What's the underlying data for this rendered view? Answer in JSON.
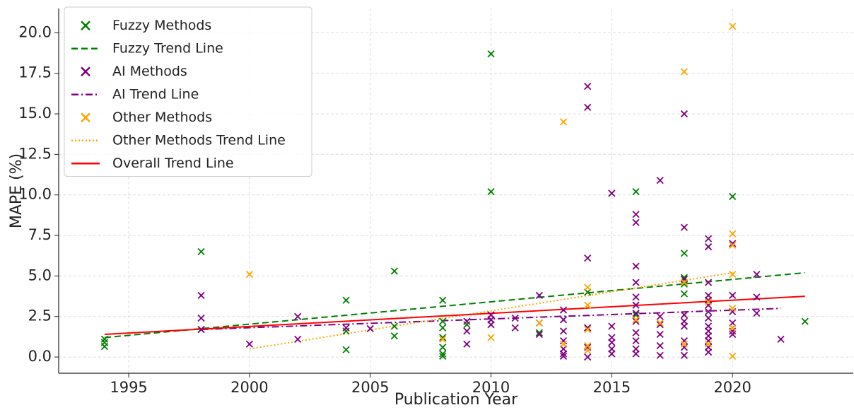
{
  "chart_data": {
    "type": "scatter",
    "xlabel": "Publication Year",
    "ylabel": "MAPE (%)",
    "xlim": [
      1992.1,
      2025
    ],
    "ylim": [
      -1.0,
      21.5
    ],
    "xticks": [
      1995,
      2000,
      2005,
      2010,
      2015,
      2020
    ],
    "yticks": [
      {
        "value": 0,
        "label": "0.0"
      },
      2.5,
      {
        "value": 5,
        "label": "5.0"
      },
      7.5,
      {
        "value": 10,
        "label": "10.0"
      },
      12.5,
      {
        "value": 15,
        "label": "15.0"
      },
      17.5,
      {
        "value": 20,
        "label": "20.0"
      }
    ],
    "grid": true,
    "legend": "upper left",
    "series": [
      {
        "name": "Fuzzy Methods",
        "color": "#008000",
        "marker": "x",
        "x": [
          1994,
          1994,
          1994,
          1998,
          1998,
          2004,
          2004,
          2004,
          2006,
          2006,
          2006,
          2008,
          2008,
          2008,
          2008,
          2008,
          2008,
          2008,
          2009,
          2010,
          2010,
          2012,
          2014,
          2014,
          2016,
          2016,
          2018,
          2018,
          2018,
          2018,
          2019,
          2020,
          2020,
          2023
        ],
        "values": [
          1.1,
          0.9,
          0.65,
          6.5,
          1.7,
          3.5,
          0.45,
          1.6,
          5.3,
          1.3,
          1.9,
          3.5,
          2.2,
          1.8,
          1.2,
          0.6,
          0.2,
          0.05,
          2.0,
          18.7,
          10.2,
          1.5,
          4.0,
          1.8,
          10.2,
          2.6,
          6.4,
          4.9,
          4.5,
          3.9,
          6.8,
          9.9,
          1.8,
          2.2
        ]
      },
      {
        "name": "Fuzzy Trend Line",
        "color": "#008000",
        "line": "dashed",
        "x": [
          1994,
          2023
        ],
        "values": [
          1.2,
          5.2
        ]
      },
      {
        "name": "AI Methods",
        "color": "#800080",
        "marker": "x",
        "x": [
          1998,
          1998,
          1998,
          2000,
          2002,
          2002,
          2004,
          2005,
          2009,
          2009,
          2009,
          2010,
          2010,
          2010,
          2011,
          2011,
          2012,
          2012,
          2012,
          2013,
          2013,
          2013,
          2013,
          2013,
          2013,
          2013,
          2014,
          2014,
          2014,
          2014,
          2014,
          2014,
          2015,
          2015,
          2015,
          2015,
          2015,
          2015,
          2016,
          2016,
          2016,
          2016,
          2016,
          2016,
          2016,
          2016,
          2016,
          2016,
          2016,
          2016,
          2017,
          2017,
          2017,
          2017,
          2017,
          2017,
          2018,
          2018,
          2018,
          2018,
          2018,
          2018,
          2018,
          2018,
          2018,
          2019,
          2019,
          2019,
          2019,
          2019,
          2019,
          2019,
          2019,
          2019,
          2019,
          2019,
          2019,
          2019,
          2019,
          2020,
          2020,
          2020,
          2020,
          2020,
          2020,
          2021,
          2021,
          2021,
          2022
        ],
        "values": [
          3.8,
          2.4,
          1.7,
          0.8,
          2.5,
          1.1,
          1.8,
          1.75,
          2.2,
          1.6,
          0.8,
          2.6,
          2.3,
          2.0,
          2.4,
          1.8,
          3.8,
          2.1,
          1.4,
          2.9,
          2.3,
          1.6,
          1.0,
          0.5,
          0.2,
          0.05,
          16.7,
          15.4,
          6.1,
          1.8,
          0.6,
          0.0,
          10.1,
          1.9,
          1.2,
          0.9,
          0.5,
          0.2,
          8.8,
          8.3,
          5.6,
          4.6,
          3.7,
          3.2,
          2.7,
          2.2,
          1.5,
          1.0,
          0.5,
          0.2,
          10.9,
          2.5,
          2.0,
          1.4,
          0.7,
          0.1,
          15.0,
          8.0,
          4.8,
          2.6,
          2.2,
          1.9,
          1.0,
          0.6,
          0.1,
          7.3,
          6.8,
          4.6,
          3.8,
          3.5,
          3.2,
          2.8,
          2.4,
          1.9,
          1.6,
          1.3,
          1.0,
          0.6,
          0.3,
          7.0,
          3.8,
          2.8,
          2.1,
          1.6,
          1.4,
          5.1,
          3.7,
          2.7,
          1.1
        ]
      },
      {
        "name": "AI Trend Line",
        "color": "#800080",
        "line": "dashdot",
        "x": [
          1998,
          2022
        ],
        "values": [
          1.7,
          3.0
        ]
      },
      {
        "name": "Other Methods",
        "color": "#ffa500",
        "marker": "x",
        "x": [
          2000,
          2008,
          2010,
          2012,
          2013,
          2013,
          2014,
          2014,
          2014,
          2014,
          2014,
          2016,
          2017,
          2018,
          2018,
          2018,
          2019,
          2019,
          2020,
          2020,
          2020,
          2020,
          2020,
          2020,
          2020
        ],
        "values": [
          5.1,
          1.1,
          1.2,
          2.1,
          14.5,
          0.8,
          4.3,
          3.2,
          1.7,
          0.7,
          0.4,
          2.3,
          2.1,
          17.6,
          4.6,
          0.8,
          3.4,
          0.8,
          20.4,
          7.6,
          6.9,
          5.1,
          3.0,
          1.8,
          0.05
        ]
      },
      {
        "name": "Other Methods Trend Line",
        "color": "#ffa500",
        "line": "dotted",
        "x": [
          2000,
          2020
        ],
        "values": [
          0.5,
          5.2
        ]
      },
      {
        "name": "Overall Trend Line",
        "color": "#ff0000",
        "line": "solid",
        "x": [
          1994,
          2023
        ],
        "values": [
          1.4,
          3.75
        ]
      }
    ]
  }
}
